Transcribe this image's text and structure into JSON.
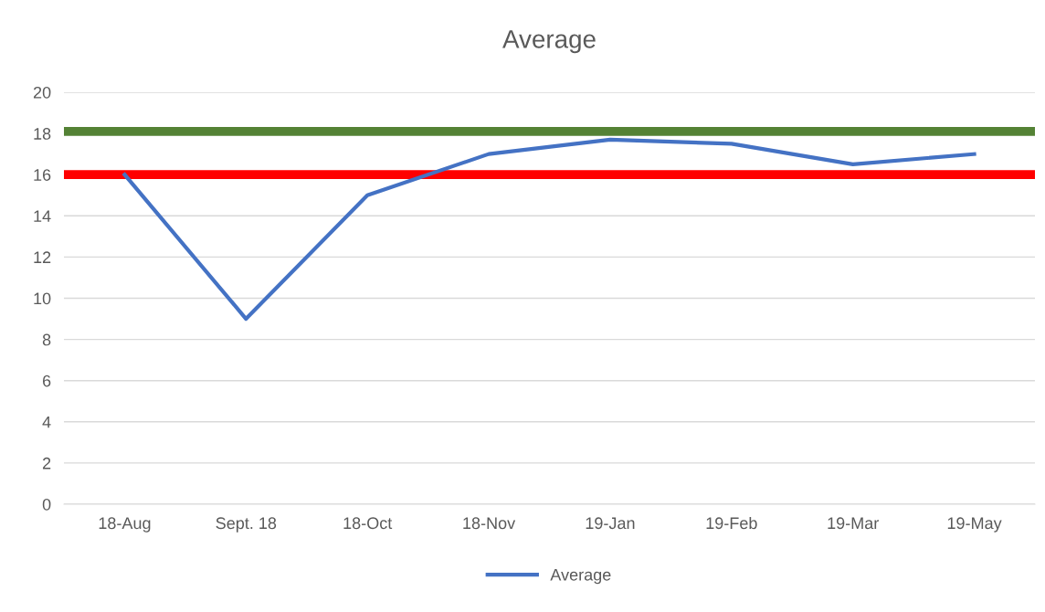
{
  "chart_data": {
    "type": "line",
    "title": "Average",
    "categories": [
      "18-Aug",
      "Sept. 18",
      "18-Oct",
      "18-Nov",
      "19-Jan",
      "19-Feb",
      "19-Mar",
      "19-May"
    ],
    "series": [
      {
        "name": "Average",
        "color": "#4472c4",
        "values": [
          16,
          9,
          15,
          17,
          17.7,
          17.5,
          16.5,
          17
        ]
      }
    ],
    "ylim": [
      0,
      20
    ],
    "yticks": [
      0,
      2,
      4,
      6,
      8,
      10,
      12,
      14,
      16,
      18,
      20
    ],
    "ref_lines": [
      {
        "axis": "y",
        "value": 18.1,
        "color": "#548235"
      },
      {
        "axis": "y",
        "value": 16,
        "color": "#ff0000"
      }
    ],
    "grid": "y",
    "legend": "bottom",
    "marker": "none",
    "line_style": "solid"
  }
}
